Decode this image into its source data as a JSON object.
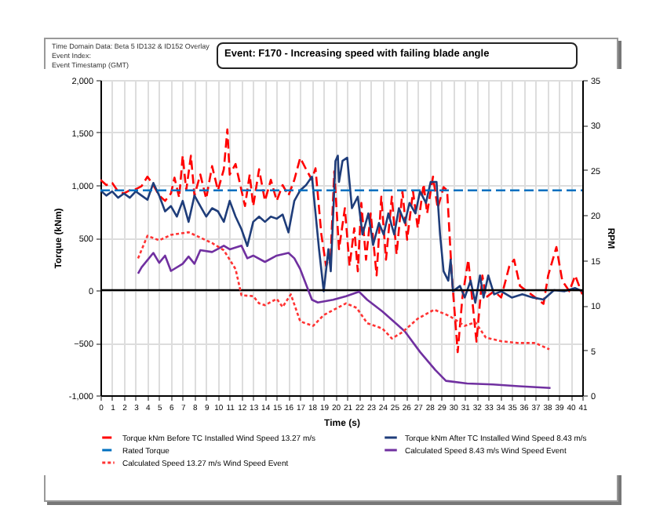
{
  "chart_data": {
    "type": "line",
    "title": "Event:  F170 - Increasing speed with failing blade angle",
    "annotations": [
      "Time Domain Data: Beta 5 ID132 & ID152 Overlay",
      "Event Index:",
      "Event Timestamp (GMT)"
    ],
    "xlabel": "Time (s)",
    "ylabel": "Torque (kNm)",
    "y2label": "RPM",
    "xlim": [
      0,
      41
    ],
    "xticks": [
      0,
      1,
      2,
      3,
      4,
      5,
      6,
      7,
      8,
      9,
      10,
      11,
      12,
      13,
      14,
      15,
      16,
      17,
      18,
      19,
      20,
      21,
      22,
      23,
      24,
      25,
      26,
      27,
      28,
      29,
      30,
      31,
      32,
      33,
      34,
      35,
      36,
      37,
      38,
      39,
      40,
      41
    ],
    "ylim": [
      -1000,
      2000
    ],
    "yticks": [
      {
        "value": -1000,
        "label": "-1,000"
      },
      -500,
      0,
      500,
      {
        "value": 1000,
        "label": "1,000"
      },
      {
        "value": 1500,
        "label": "1,500"
      },
      {
        "value": 2000,
        "label": "2,000"
      }
    ],
    "y2lim": [
      0,
      35
    ],
    "y2ticks": [
      0,
      5,
      10,
      15,
      20,
      25,
      30,
      35
    ],
    "grid": true,
    "legend": "bottom",
    "ref_lines": [
      {
        "axis": "y",
        "value": 0,
        "color": "#000000"
      }
    ],
    "series": [
      {
        "name": "Torque kNm Before TC Installed Wind Speed 13.27 m/s",
        "color": "#ff0000",
        "line_style": "dashed",
        "x": [
          0,
          0.5,
          1,
          1.5,
          2,
          2.5,
          3,
          3.5,
          4,
          4.5,
          5,
          5.5,
          6,
          6.3,
          6.7,
          7,
          7.3,
          7.7,
          8,
          8.5,
          9,
          9.5,
          10,
          10.5,
          10.8,
          11,
          11.5,
          12,
          12.3,
          12.7,
          13,
          13.5,
          14,
          14.5,
          15,
          15.5,
          16,
          16.5,
          17,
          17.5,
          18,
          18.3,
          18.8,
          19.2,
          19.6,
          19.9,
          20.3,
          20.8,
          21.2,
          21.6,
          21.9,
          22.2,
          22.6,
          23,
          23.5,
          23.9,
          24.3,
          24.8,
          25.2,
          25.7,
          26.1,
          26.6,
          27,
          27.5,
          27.8,
          28.3,
          28.7,
          29.2,
          29.5,
          29.9,
          30.4,
          30.8,
          31.3,
          31.7,
          32,
          32.5,
          32.8,
          33.5,
          34.1,
          34.8,
          35.2,
          35.7,
          36.3,
          37,
          37.7,
          38.1,
          38.8,
          39.3,
          39.9,
          40.4,
          41
        ],
        "values": [
          1050,
          1000,
          1020,
          940,
          920,
          950,
          960,
          990,
          1080,
          1000,
          900,
          850,
          920,
          1070,
          880,
          1280,
          950,
          1280,
          900,
          1100,
          870,
          1180,
          950,
          1150,
          1530,
          1100,
          1200,
          950,
          800,
          1100,
          800,
          1150,
          850,
          1050,
          850,
          1000,
          900,
          1050,
          1260,
          1150,
          1050,
          1160,
          530,
          230,
          350,
          1130,
          390,
          780,
          230,
          590,
          180,
          830,
          290,
          730,
          140,
          890,
          290,
          890,
          340,
          940,
          480,
          940,
          590,
          1010,
          730,
          1080,
          780,
          980,
          950,
          140,
          -590,
          -70,
          290,
          -160,
          -490,
          140,
          -70,
          -10,
          -70,
          230,
          290,
          40,
          -10,
          -70,
          -130,
          140,
          410,
          90,
          -10,
          140,
          -40
        ]
      },
      {
        "name": "Torque kNm After TC Installed Wind Speed 8.43 m/s",
        "color": "#1f3d7a",
        "line_style": "solid",
        "x": [
          0,
          0.5,
          1,
          1.5,
          2,
          2.5,
          3,
          3.5,
          4,
          4.5,
          5,
          5.5,
          6,
          6.5,
          7,
          7.5,
          8,
          8.5,
          9,
          9.5,
          10,
          10.5,
          11,
          11.5,
          12,
          12.5,
          13,
          13.5,
          14,
          14.5,
          15,
          15.5,
          16,
          16.5,
          17,
          17.5,
          18,
          18.6,
          19,
          19.4,
          19.6,
          20,
          20.2,
          20.3,
          20.6,
          21,
          21.4,
          21.9,
          22.3,
          22.8,
          23.2,
          23.7,
          24.1,
          24.5,
          25,
          25.4,
          25.9,
          26.3,
          26.8,
          27.2,
          27.7,
          28.1,
          28.6,
          28.9,
          29.2,
          29.6,
          29.8,
          30,
          30.6,
          31,
          31.5,
          31.9,
          32.3,
          32.6,
          33,
          33.5,
          34.1,
          35,
          35.9,
          36.8,
          37.7,
          38.6,
          39.5,
          40.4,
          41
        ],
        "values": [
          950,
          900,
          940,
          880,
          920,
          880,
          940,
          900,
          860,
          1020,
          900,
          750,
          800,
          700,
          850,
          650,
          900,
          800,
          700,
          780,
          750,
          650,
          850,
          700,
          580,
          420,
          650,
          700,
          650,
          700,
          680,
          720,
          550,
          850,
          950,
          1000,
          1080,
          390,
          -10,
          390,
          180,
          1230,
          1280,
          1030,
          1230,
          1260,
          780,
          890,
          530,
          730,
          430,
          640,
          530,
          730,
          530,
          780,
          640,
          830,
          730,
          940,
          830,
          1030,
          1030,
          530,
          180,
          90,
          290,
          -10,
          40,
          -70,
          90,
          -120,
          140,
          -70,
          140,
          -40,
          -10,
          -70,
          -40,
          -70,
          -90,
          0,
          -10,
          20,
          -10
        ]
      },
      {
        "name": "Rated Torque",
        "color": "#0070c0",
        "line_style": "dashed",
        "x": [
          0,
          41
        ],
        "values": [
          950,
          950
        ]
      },
      {
        "name": "Calculated Speed 8.43 m/s Wind Speed Event",
        "color": "#7030a0",
        "line_style": "solid",
        "axis": "y2",
        "x": [
          3.2,
          3.5,
          4.5,
          5,
          5.5,
          6,
          7,
          7.5,
          8,
          8.5,
          9.5,
          10.5,
          11,
          12,
          12.5,
          13,
          14,
          15,
          16,
          16.5,
          17,
          17.5,
          18,
          18.5,
          19.8,
          20.9,
          22,
          22.7,
          24,
          25.9,
          27.2,
          28.5,
          29.4,
          31.2,
          33.4,
          35.6,
          38.3
        ],
        "values": [
          13.5,
          14.2,
          15.8,
          14.7,
          15.5,
          13.8,
          14.6,
          15.4,
          14.6,
          16.1,
          15.9,
          16.6,
          16.2,
          16.6,
          15.2,
          15.5,
          14.8,
          15.5,
          15.8,
          15.2,
          14,
          12.3,
          10.6,
          10.3,
          10.6,
          11,
          11.5,
          10.6,
          9.3,
          7.1,
          4.8,
          2.8,
          1.6,
          1.3,
          1.2,
          1,
          0.8
        ]
      },
      {
        "name": "Calculated Speed 13.27 m/s Wind Speed Event",
        "color": "#ff3333",
        "line_style": "dotted",
        "axis": "y2",
        "x": [
          3.2,
          4,
          5,
          6,
          7.5,
          8.5,
          9.5,
          10.5,
          11.5,
          12,
          13,
          13.5,
          14,
          15,
          15.5,
          16.2,
          17,
          18.1,
          19,
          20.9,
          21.8,
          22.7,
          24,
          24.8,
          25.7,
          27,
          28.4,
          29.7,
          31,
          31.9,
          32.8,
          34.1,
          35.5,
          37,
          38.2
        ],
        "values": [
          15.2,
          17.7,
          17.2,
          17.8,
          18.1,
          17.5,
          16.9,
          16.1,
          14,
          11.1,
          11,
          10.2,
          10,
          10.7,
          9.8,
          11.2,
          8.2,
          7.7,
          8.9,
          10.2,
          9.7,
          8,
          7.4,
          6.3,
          7,
          8.5,
          9.5,
          8.8,
          7.7,
          8.1,
          6.4,
          6,
          5.8,
          5.8,
          5.1
        ]
      }
    ]
  }
}
